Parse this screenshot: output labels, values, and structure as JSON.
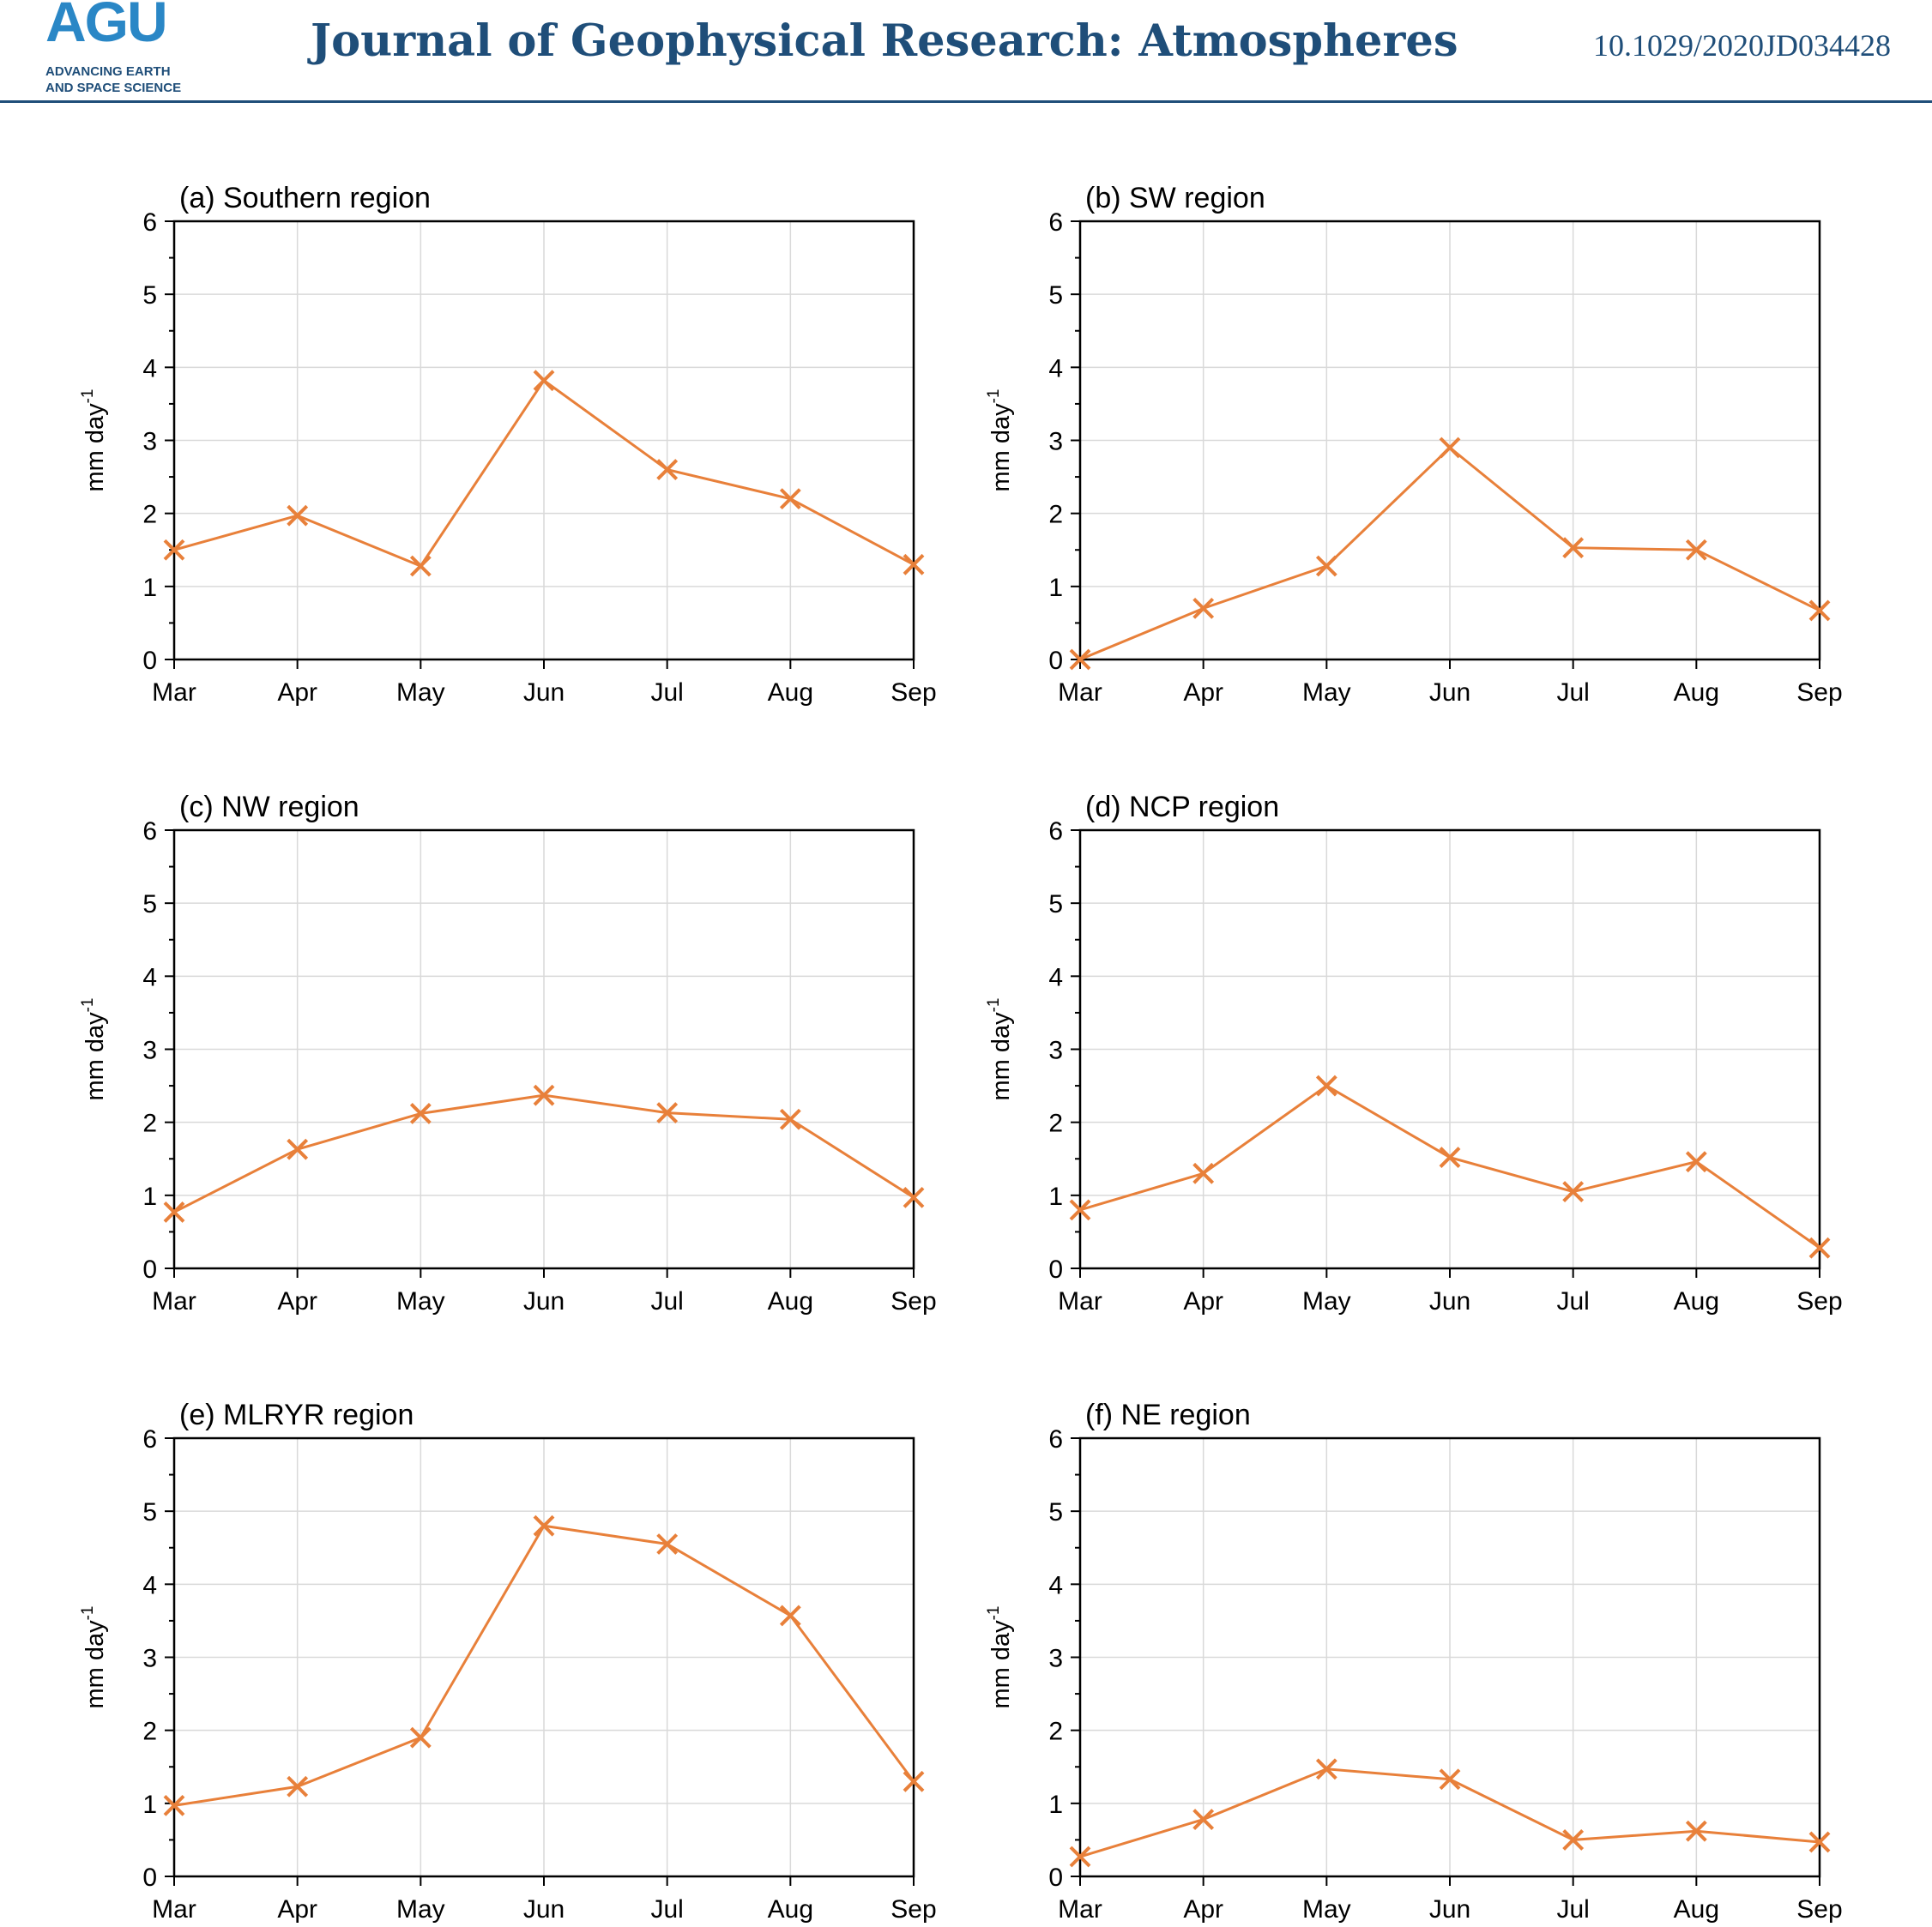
{
  "header": {
    "logo_text": "AGU",
    "logo_line1": "ADVANCING EARTH",
    "logo_line2": "AND SPACE SCIENCE",
    "journal_title": "Journal of Geophysical Research: Atmospheres",
    "doi": "10.1029/2020JD034428"
  },
  "colors": {
    "series": "#e8803a",
    "grid": "#d9d9d9",
    "header_blue": "#1f4e79",
    "logo_blue": "#2a87c6"
  },
  "chart_data": [
    {
      "type": "line",
      "panel": "(a)",
      "title": "Southern region",
      "ylabel": "mm day",
      "ylabel_sup": "-1",
      "x": [
        "Mar",
        "Apr",
        "May",
        "Jun",
        "Jul",
        "Aug",
        "Sep"
      ],
      "values": [
        1.5,
        1.97,
        1.28,
        3.82,
        2.6,
        2.2,
        1.3
      ],
      "ylim": [
        0,
        6
      ],
      "yticks": [
        0,
        1,
        2,
        3,
        4,
        5,
        6
      ],
      "grid": true,
      "marker": "x"
    },
    {
      "type": "line",
      "panel": "(b)",
      "title": "SW region",
      "ylabel": "mm day",
      "ylabel_sup": "-1",
      "x": [
        "Mar",
        "Apr",
        "May",
        "Jun",
        "Jul",
        "Aug",
        "Sep"
      ],
      "values": [
        0.0,
        0.7,
        1.28,
        2.9,
        1.53,
        1.5,
        0.67
      ],
      "ylim": [
        0,
        6
      ],
      "yticks": [
        0,
        1,
        2,
        3,
        4,
        5,
        6
      ],
      "grid": true,
      "marker": "x"
    },
    {
      "type": "line",
      "panel": "(c)",
      "title": "NW region",
      "ylabel": "mm day",
      "ylabel_sup": "-1",
      "x": [
        "Mar",
        "Apr",
        "May",
        "Jun",
        "Jul",
        "Aug",
        "Sep"
      ],
      "values": [
        0.77,
        1.63,
        2.12,
        2.37,
        2.13,
        2.04,
        0.97
      ],
      "ylim": [
        0,
        6
      ],
      "yticks": [
        0,
        1,
        2,
        3,
        4,
        5,
        6
      ],
      "grid": true,
      "marker": "x"
    },
    {
      "type": "line",
      "panel": "(d)",
      "title": "NCP region",
      "ylabel": "mm day",
      "ylabel_sup": "-1",
      "x": [
        "Mar",
        "Apr",
        "May",
        "Jun",
        "Jul",
        "Aug",
        "Sep"
      ],
      "values": [
        0.8,
        1.3,
        2.5,
        1.52,
        1.05,
        1.46,
        0.28
      ],
      "ylim": [
        0,
        6
      ],
      "yticks": [
        0,
        1,
        2,
        3,
        4,
        5,
        6
      ],
      "grid": true,
      "marker": "x"
    },
    {
      "type": "line",
      "panel": "(e)",
      "title": "MLRYR region",
      "ylabel": "mm day",
      "ylabel_sup": "-1",
      "x": [
        "Mar",
        "Apr",
        "May",
        "Jun",
        "Jul",
        "Aug",
        "Sep"
      ],
      "values": [
        0.97,
        1.23,
        1.9,
        4.8,
        4.55,
        3.57,
        1.3
      ],
      "ylim": [
        0,
        6
      ],
      "yticks": [
        0,
        1,
        2,
        3,
        4,
        5,
        6
      ],
      "grid": true,
      "marker": "x"
    },
    {
      "type": "line",
      "panel": "(f)",
      "title": "NE region",
      "ylabel": "mm day",
      "ylabel_sup": "-1",
      "x": [
        "Mar",
        "Apr",
        "May",
        "Jun",
        "Jul",
        "Aug",
        "Sep"
      ],
      "values": [
        0.27,
        0.78,
        1.47,
        1.33,
        0.5,
        0.62,
        0.47
      ],
      "ylim": [
        0,
        6
      ],
      "yticks": [
        0,
        1,
        2,
        3,
        4,
        5,
        6
      ],
      "grid": true,
      "marker": "x"
    }
  ]
}
